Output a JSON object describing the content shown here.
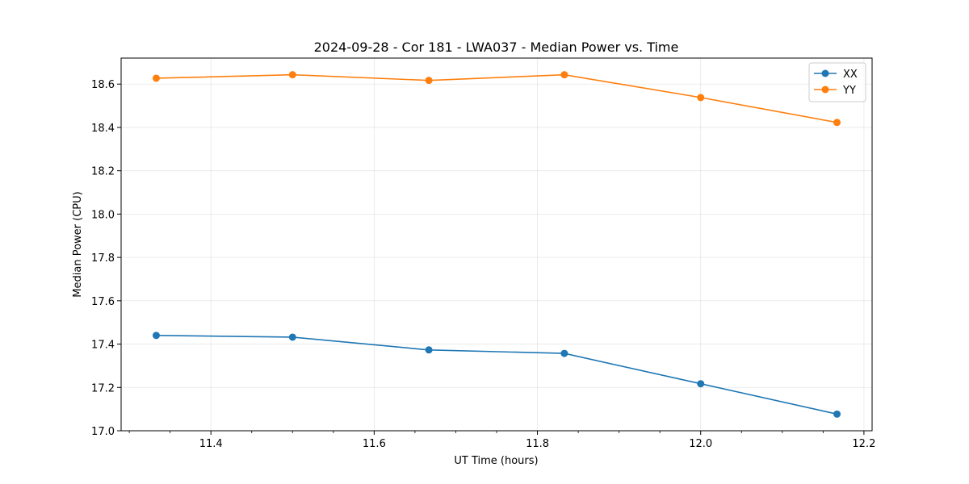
{
  "chart_data": {
    "type": "line",
    "title": "2024-09-28 - Cor 181 - LWA037 - Median Power vs. Time",
    "xlabel": "UT Time (hours)",
    "ylabel": "Median Power (CPU)",
    "xlim": [
      11.29,
      12.21
    ],
    "ylim": [
      17.0,
      18.72
    ],
    "xticks": [
      11.4,
      11.6,
      11.8,
      12.0,
      12.2
    ],
    "xtick_labels": [
      "11.4",
      "11.6",
      "11.8",
      "12.0",
      "12.2"
    ],
    "yticks": [
      17.0,
      17.2,
      17.4,
      17.6,
      17.8,
      18.0,
      18.2,
      18.4,
      18.6
    ],
    "ytick_labels": [
      "17.0",
      "17.2",
      "17.4",
      "17.6",
      "17.8",
      "18.0",
      "18.2",
      "18.4",
      "18.6"
    ],
    "grid": true,
    "legend_position": "top-right",
    "x": [
      11.333,
      11.5,
      11.667,
      11.833,
      12.0,
      12.167
    ],
    "series": [
      {
        "name": "XX",
        "color": "#1f77b4",
        "values": [
          17.44,
          17.432,
          17.373,
          17.357,
          17.217,
          17.077
        ]
      },
      {
        "name": "YY",
        "color": "#ff7f0e",
        "values": [
          18.627,
          18.643,
          18.617,
          18.643,
          18.538,
          18.423
        ]
      }
    ]
  }
}
